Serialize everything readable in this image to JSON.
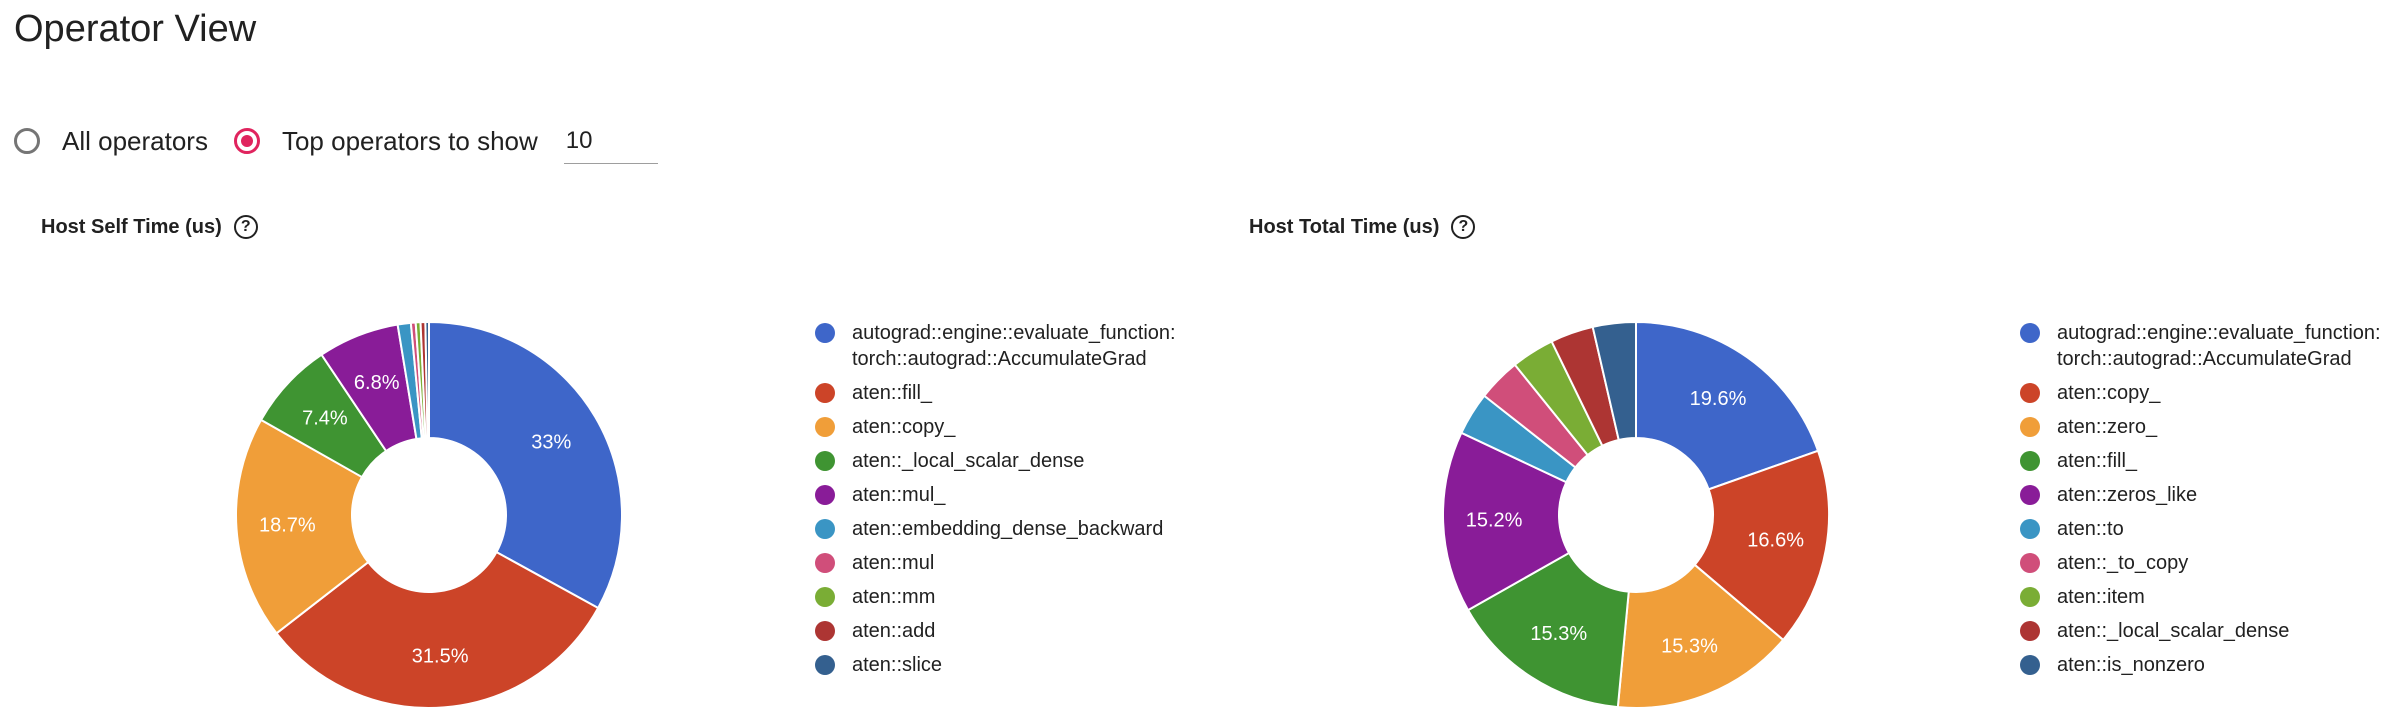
{
  "page": {
    "title": "Operator View"
  },
  "options": {
    "all_label": "All operators",
    "top_label": "Top operators to show",
    "selected": "top",
    "top_value": "10"
  },
  "charts": [
    {
      "title": "Host Self Time (us)",
      "help_icon": "question-circle-icon"
    },
    {
      "title": "Host Total Time (us)",
      "help_icon": "question-circle-icon"
    }
  ],
  "chart_data": [
    {
      "type": "pie",
      "title": "Host Self Time (us)",
      "donut": true,
      "legend_position": "right",
      "slices": [
        {
          "label": "autograd::engine::evaluate_function:\ntorch::autograd::AccumulateGrad",
          "value": 33.0,
          "pct_label": "33%",
          "color": "#3e66c9"
        },
        {
          "label": "aten::fill_",
          "value": 31.5,
          "pct_label": "31.5%",
          "color": "#cc4428"
        },
        {
          "label": "aten::copy_",
          "value": 18.7,
          "pct_label": "18.7%",
          "color": "#f09e39"
        },
        {
          "label": "aten::_local_scalar_dense",
          "value": 7.4,
          "pct_label": "7.4%",
          "color": "#3f9432"
        },
        {
          "label": "aten::mul_",
          "value": 6.8,
          "pct_label": "6.8%",
          "color": "#891c98"
        },
        {
          "label": "aten::embedding_dense_backward",
          "value": 1.1,
          "pct_label": "",
          "color": "#3a95c4"
        },
        {
          "label": "aten::mul",
          "value": 0.4,
          "pct_label": "",
          "color": "#d04e7a"
        },
        {
          "label": "aten::mm",
          "value": 0.4,
          "pct_label": "",
          "color": "#7aad35"
        },
        {
          "label": "aten::add",
          "value": 0.4,
          "pct_label": "",
          "color": "#ad3533"
        },
        {
          "label": "aten::slice",
          "value": 0.3,
          "pct_label": "",
          "color": "#34608f"
        }
      ]
    },
    {
      "type": "pie",
      "title": "Host Total Time (us)",
      "donut": true,
      "legend_position": "right",
      "slices": [
        {
          "label": "autograd::engine::evaluate_function:\ntorch::autograd::AccumulateGrad",
          "value": 19.6,
          "pct_label": "19.6%",
          "color": "#3e66c9"
        },
        {
          "label": "aten::copy_",
          "value": 16.6,
          "pct_label": "16.6%",
          "color": "#cc4428"
        },
        {
          "label": "aten::zero_",
          "value": 15.3,
          "pct_label": "15.3%",
          "color": "#f09e39"
        },
        {
          "label": "aten::fill_",
          "value": 15.3,
          "pct_label": "15.3%",
          "color": "#3f9432"
        },
        {
          "label": "aten::zeros_like",
          "value": 15.2,
          "pct_label": "15.2%",
          "color": "#891c98"
        },
        {
          "label": "aten::to",
          "value": 3.6,
          "pct_label": "",
          "color": "#3a95c4"
        },
        {
          "label": "aten::_to_copy",
          "value": 3.6,
          "pct_label": "",
          "color": "#d04e7a"
        },
        {
          "label": "aten::item",
          "value": 3.6,
          "pct_label": "",
          "color": "#7aad35"
        },
        {
          "label": "aten::_local_scalar_dense",
          "value": 3.6,
          "pct_label": "",
          "color": "#ad3533"
        },
        {
          "label": "aten::is_nonzero",
          "value": 3.6,
          "pct_label": "",
          "color": "#34608f"
        }
      ]
    }
  ]
}
